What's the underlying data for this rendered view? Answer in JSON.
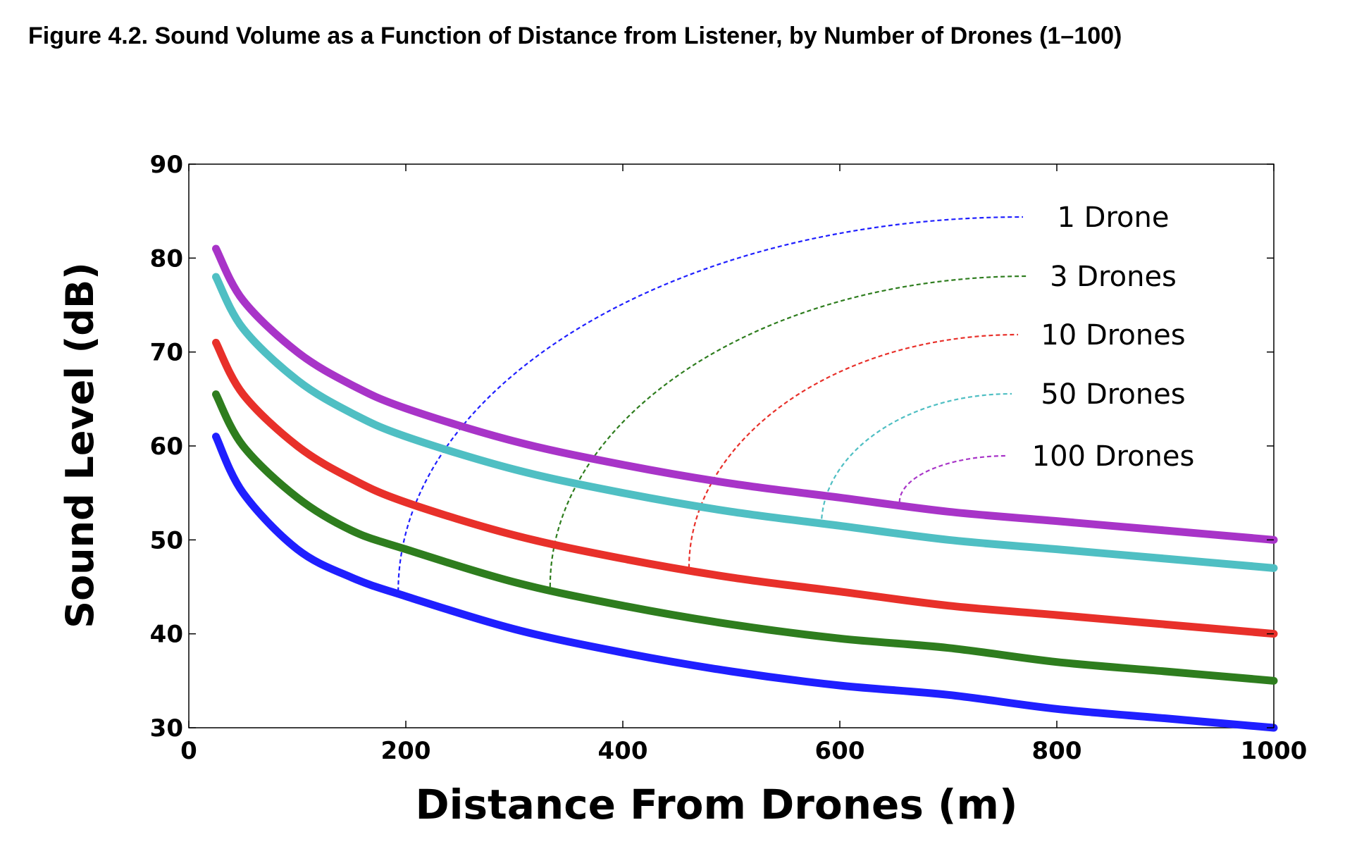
{
  "figure_title": "Figure 4.2. Sound Volume as a Function of Distance from Listener, by Number of Drones (1–100)",
  "chart_data": {
    "type": "line",
    "title": "Figure 4.2. Sound Volume as a Function of Distance from Listener, by Number of Drones (1–100)",
    "xlabel": "Distance From Drones (m)",
    "ylabel": "Sound Level (dB)",
    "xlim": [
      0,
      1000
    ],
    "ylim": [
      30,
      90
    ],
    "x_ticks": [
      "0",
      "200",
      "400",
      "600",
      "800",
      "1000"
    ],
    "y_ticks": [
      "30",
      "40",
      "50",
      "60",
      "70",
      "80",
      "90"
    ],
    "grid": false,
    "legend_placement": "top-right, inline labels with dashed leader lines to curves",
    "x": [
      25,
      50,
      100,
      150,
      200,
      300,
      400,
      500,
      600,
      700,
      800,
      900,
      1000
    ],
    "series": [
      {
        "name": "1 Drone",
        "color": "#1f1fff",
        "values": [
          61,
          55,
          49,
          46,
          44,
          40.5,
          38,
          36,
          34.5,
          33.5,
          32,
          31,
          30
        ],
        "label_anchor": {
          "x": 193,
          "y": 44.5
        }
      },
      {
        "name": "3 Drones",
        "color": "#2e7d1e",
        "values": [
          65.5,
          60,
          54.5,
          51,
          49,
          45.5,
          43,
          41,
          39.5,
          38.5,
          37,
          36,
          35
        ],
        "label_anchor": {
          "x": 333,
          "y": 45
        }
      },
      {
        "name": "10 Drones",
        "color": "#e8302a",
        "values": [
          71,
          65.5,
          60,
          56.5,
          54,
          50.5,
          48,
          46,
          44.5,
          43,
          42,
          41,
          40
        ],
        "label_anchor": {
          "x": 461,
          "y": 47
        }
      },
      {
        "name": "50 Drones",
        "color": "#4fbfc3",
        "values": [
          78,
          72.5,
          67,
          63.5,
          61,
          57.5,
          55,
          53,
          51.5,
          50,
          49,
          48,
          47
        ],
        "label_anchor": {
          "x": 583,
          "y": 51.5
        }
      },
      {
        "name": "100 Drones",
        "color": "#a834c8",
        "values": [
          81,
          75.5,
          70,
          66.5,
          64,
          60.5,
          58,
          56,
          54.5,
          53,
          52,
          51,
          50
        ],
        "label_anchor": {
          "x": 655,
          "y": 54
        }
      }
    ]
  }
}
